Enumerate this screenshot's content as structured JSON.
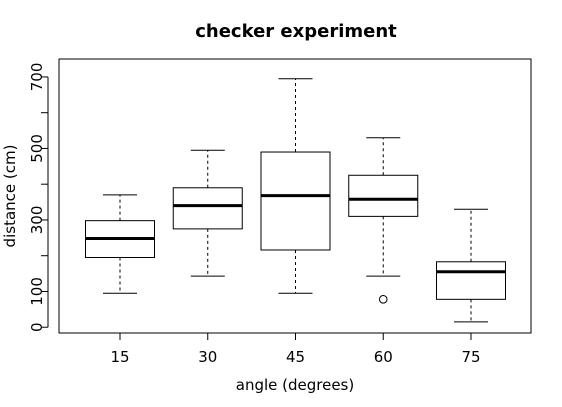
{
  "chart_data": {
    "type": "boxplot",
    "title": "checker experiment",
    "xlabel": "angle (degrees)",
    "ylabel": "distance (cm)",
    "categories": [
      "15",
      "30",
      "45",
      "60",
      "75"
    ],
    "ylim": [
      -5,
      725
    ],
    "yticks": [
      0,
      100,
      300,
      500,
      700
    ],
    "yticks_minor": [
      200,
      400,
      600
    ],
    "grid": false,
    "boxes": [
      {
        "category": "15",
        "whisker_low": 95,
        "q1": 195,
        "median": 248,
        "q3": 298,
        "whisker_high": 370,
        "outliers": []
      },
      {
        "category": "30",
        "whisker_low": 143,
        "q1": 275,
        "median": 340,
        "q3": 390,
        "whisker_high": 495,
        "outliers": []
      },
      {
        "category": "45",
        "whisker_low": 95,
        "q1": 216,
        "median": 368,
        "q3": 490,
        "whisker_high": 695,
        "outliers": []
      },
      {
        "category": "60",
        "whisker_low": 143,
        "q1": 310,
        "median": 358,
        "q3": 425,
        "whisker_high": 530,
        "outliers": [
          78
        ]
      },
      {
        "category": "75",
        "whisker_low": 15,
        "q1": 78,
        "median": 155,
        "q3": 183,
        "whisker_high": 330,
        "outliers": []
      }
    ]
  }
}
